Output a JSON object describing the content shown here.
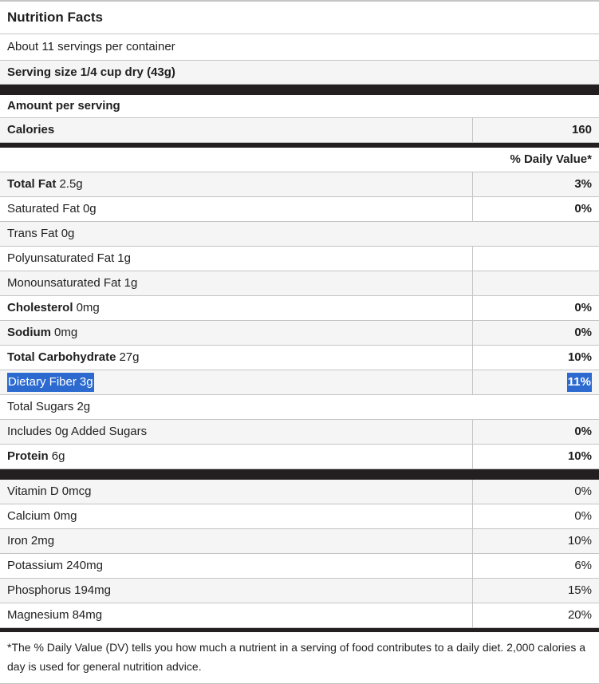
{
  "label": {
    "title": "Nutrition Facts",
    "servings_per_container": "About 11 servings per container",
    "serving_size": "Serving size 1/4 cup dry (43g)",
    "amount_per_serving": "Amount per serving",
    "calories_label": "Calories",
    "calories_value": "160",
    "daily_value_header": "% Daily Value*",
    "footnote": "*The % Daily Value (DV) tells you how much a nutrient in a serving of food contributes to a daily diet. 2,000 calories a day is used for general nutrition advice."
  },
  "nutrients": [
    {
      "name": "Total Fat",
      "amount": "2.5g",
      "dv": "3%"
    },
    {
      "name": "Saturated Fat",
      "amount": "0g",
      "dv": "0%"
    },
    {
      "name": "Trans Fat",
      "amount": "0g",
      "dv": ""
    },
    {
      "name": "Polyunsaturated Fat",
      "amount": "1g",
      "dv": ""
    },
    {
      "name": "Monounsaturated Fat",
      "amount": "1g",
      "dv": ""
    },
    {
      "name": "Cholesterol",
      "amount": "0mg",
      "dv": "0%"
    },
    {
      "name": "Sodium",
      "amount": "0mg",
      "dv": "0%"
    },
    {
      "name": "Total Carbohydrate",
      "amount": "27g",
      "dv": "10%"
    },
    {
      "name": "Dietary Fiber",
      "amount": "3g",
      "dv": "11%",
      "selected": true
    },
    {
      "name": "Total Sugars",
      "amount": "2g",
      "dv": ""
    },
    {
      "name": "Includes 0g Added Sugars",
      "amount": "",
      "dv": "0%"
    },
    {
      "name": "Protein",
      "amount": "6g",
      "dv": "10%"
    }
  ],
  "micronutrients": [
    {
      "name": "Vitamin D",
      "amount": "0mcg",
      "dv": "0%"
    },
    {
      "name": "Calcium",
      "amount": "0mg",
      "dv": "0%"
    },
    {
      "name": "Iron",
      "amount": "2mg",
      "dv": "10%"
    },
    {
      "name": "Potassium",
      "amount": "240mg",
      "dv": "6%"
    },
    {
      "name": "Phosphorus",
      "amount": "194mg",
      "dv": "15%"
    },
    {
      "name": "Magnesium",
      "amount": "84mg",
      "dv": "20%"
    }
  ],
  "colors": {
    "selection_blue": "#2c6ad0",
    "row_shade": "#f5f5f5",
    "divider_bar": "#231f20",
    "border_gray": "#c4c4c4"
  }
}
